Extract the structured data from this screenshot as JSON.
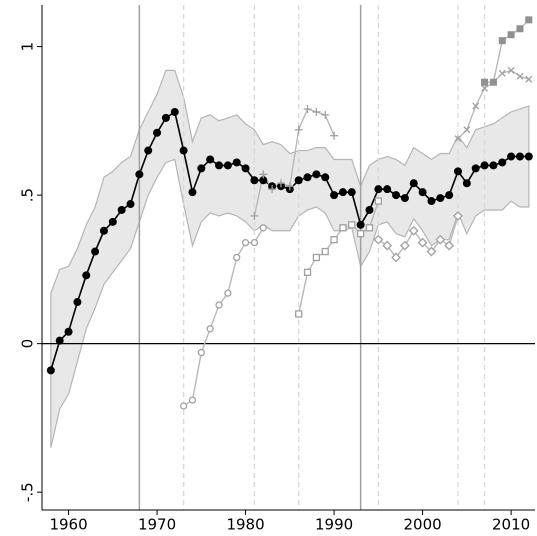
{
  "chart_data": {
    "type": "line",
    "xlim": [
      1957,
      2012.7
    ],
    "ylim": [
      -0.56,
      1.14
    ],
    "xticks": [
      1960,
      1970,
      1980,
      1990,
      2000,
      2010
    ],
    "yticks": [
      {
        "value": -0.5,
        "label": "-.5"
      },
      0,
      {
        "value": 0.5,
        "label": ".5"
      },
      1
    ],
    "hline": 0,
    "vlines_solid": [
      1968,
      1993
    ],
    "vlines_dashed": [
      1973,
      1981,
      1986,
      1995,
      2004,
      2007
    ],
    "band_color": "#e8e8e8",
    "series": [
      {
        "color": "#000000",
        "marker": "filled-circle",
        "x": [
          1958,
          1959,
          1960,
          1961,
          1962,
          1963,
          1964,
          1965,
          1966,
          1967,
          1968,
          1969,
          1970,
          1971,
          1972,
          1973,
          1974,
          1975,
          1976,
          1977,
          1978,
          1979,
          1980,
          1981,
          1982,
          1983,
          1984,
          1985,
          1986,
          1987,
          1988,
          1989,
          1990,
          1991,
          1992,
          1993,
          1994,
          1995,
          1996,
          1997,
          1998,
          1999,
          2000,
          2001,
          2002,
          2003,
          2004,
          2005,
          2006,
          2007,
          2008,
          2009,
          2010,
          2011,
          2012
        ],
        "values": [
          -0.09,
          0.01,
          0.04,
          0.14,
          0.23,
          0.31,
          0.38,
          0.41,
          0.45,
          0.47,
          0.57,
          0.65,
          0.71,
          0.76,
          0.78,
          0.65,
          0.51,
          0.59,
          0.62,
          0.6,
          0.6,
          0.61,
          0.59,
          0.55,
          0.55,
          0.53,
          0.53,
          0.52,
          0.55,
          0.56,
          0.57,
          0.56,
          0.5,
          0.51,
          0.51,
          0.4,
          0.45,
          0.52,
          0.52,
          0.5,
          0.49,
          0.54,
          0.51,
          0.48,
          0.49,
          0.5,
          0.58,
          0.54,
          0.59,
          0.6,
          0.6,
          0.61,
          0.63,
          0.63,
          0.63
        ],
        "upper": [
          0.17,
          0.25,
          0.26,
          0.32,
          0.4,
          0.46,
          0.56,
          0.58,
          0.61,
          0.63,
          0.72,
          0.78,
          0.84,
          0.92,
          0.92,
          0.83,
          0.68,
          0.76,
          0.77,
          0.75,
          0.76,
          0.77,
          0.74,
          0.72,
          0.67,
          0.68,
          0.67,
          0.64,
          0.65,
          0.65,
          0.66,
          0.66,
          0.62,
          0.62,
          0.62,
          0.53,
          0.6,
          0.62,
          0.63,
          0.62,
          0.6,
          0.66,
          0.64,
          0.62,
          0.64,
          0.64,
          0.7,
          0.66,
          0.72,
          0.73,
          0.74,
          0.76,
          0.78,
          0.79,
          0.8
        ],
        "lower": [
          -0.35,
          -0.22,
          -0.17,
          -0.06,
          0.05,
          0.12,
          0.2,
          0.24,
          0.28,
          0.32,
          0.41,
          0.5,
          0.56,
          0.61,
          0.62,
          0.47,
          0.33,
          0.41,
          0.44,
          0.43,
          0.44,
          0.43,
          0.41,
          0.38,
          0.4,
          0.38,
          0.38,
          0.38,
          0.43,
          0.45,
          0.46,
          0.44,
          0.38,
          0.38,
          0.39,
          0.26,
          0.31,
          0.4,
          0.41,
          0.37,
          0.36,
          0.42,
          0.38,
          0.33,
          0.35,
          0.35,
          0.44,
          0.37,
          0.43,
          0.45,
          0.45,
          0.45,
          0.48,
          0.46,
          0.46
        ]
      },
      {
        "color": "#a0a0a0",
        "marker": "hollow-circle",
        "x": [
          1973,
          1974,
          1975,
          1976,
          1977,
          1978,
          1979,
          1980,
          1981,
          1982
        ],
        "values": [
          -0.21,
          -0.19,
          -0.03,
          0.05,
          0.13,
          0.17,
          0.29,
          0.34,
          0.34,
          0.39
        ]
      },
      {
        "color": "#a0a0a0",
        "marker": "plus",
        "x": [
          1981,
          1982,
          1983,
          1984,
          1985,
          1986,
          1987,
          1988,
          1989,
          1990
        ],
        "values": [
          0.43,
          0.57,
          0.52,
          0.54,
          0.53,
          0.72,
          0.79,
          0.78,
          0.77,
          0.7
        ]
      },
      {
        "color": "#a0a0a0",
        "marker": "hollow-square",
        "x": [
          1986,
          1987,
          1988,
          1989,
          1990,
          1991,
          1992,
          1993,
          1994,
          1995
        ],
        "values": [
          0.1,
          0.24,
          0.29,
          0.31,
          0.35,
          0.39,
          0.4,
          0.37,
          0.39,
          0.48
        ]
      },
      {
        "color": "#a0a0a0",
        "marker": "hollow-diamond",
        "x": [
          1995,
          1996,
          1997,
          1998,
          1999,
          2000,
          2001,
          2002,
          2003,
          2004
        ],
        "values": [
          0.35,
          0.33,
          0.29,
          0.33,
          0.38,
          0.34,
          0.31,
          0.35,
          0.33,
          0.43
        ]
      },
      {
        "color": "#a0a0a0",
        "marker": "cross",
        "x": [
          2004,
          2005,
          2006,
          2007,
          2008,
          2009,
          2010,
          2011,
          2012
        ],
        "values": [
          0.69,
          0.72,
          0.8,
          0.86,
          0.88,
          0.91,
          0.92,
          0.9,
          0.89
        ]
      },
      {
        "color": "#909090",
        "marker": "filled-square",
        "x": [
          2007,
          2008,
          2009,
          2010,
          2011,
          2012
        ],
        "values": [
          0.88,
          0.88,
          1.02,
          1.04,
          1.06,
          1.09
        ]
      }
    ]
  }
}
